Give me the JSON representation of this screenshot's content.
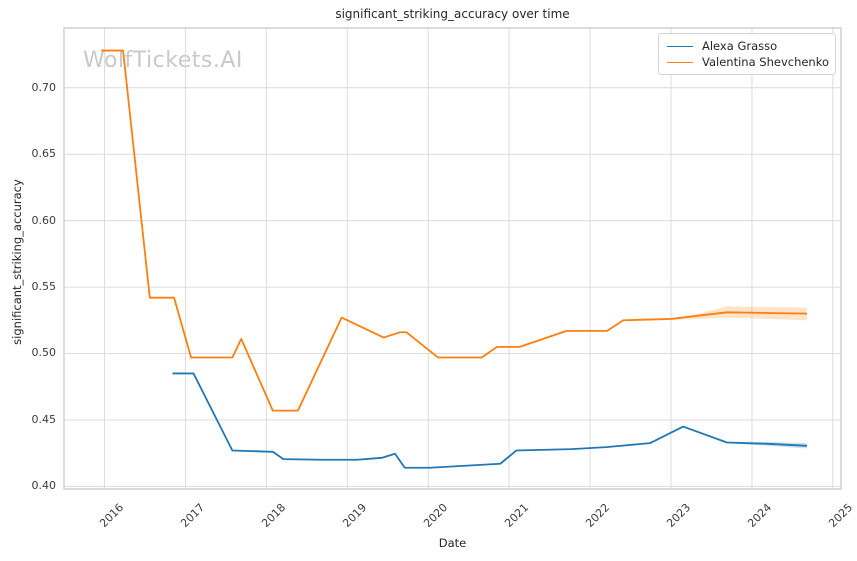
{
  "watermark": "WolfTickets.AI",
  "colors": {
    "background": "#ffffff",
    "grid": "#dcdcdc",
    "spine": "#d0d0d0",
    "text": "#262626",
    "tick_text": "#3b3b3b",
    "watermark": "#c9c9c9"
  },
  "legend": {
    "position": "upper right",
    "entries": [
      {
        "label": "Alexa Grasso",
        "color": "#1f77b4"
      },
      {
        "label": "Valentina Shevchenko",
        "color": "#ff7f0e"
      }
    ]
  },
  "chart_data": {
    "type": "line",
    "title": "significant_striking_accuracy over time",
    "xlabel": "Date",
    "ylabel": "significant_striking_accuracy",
    "xlim": [
      2015.5,
      2025.1
    ],
    "ylim": [
      0.398,
      0.745
    ],
    "x_ticks": [
      2016,
      2017,
      2018,
      2019,
      2020,
      2021,
      2022,
      2023,
      2024,
      2025
    ],
    "y_ticks": [
      0.4,
      0.45,
      0.5,
      0.55,
      0.6,
      0.65,
      0.7
    ],
    "grid": true,
    "series": [
      {
        "name": "Alexa Grasso",
        "color": "#1f77b4",
        "points": [
          [
            2016.84,
            0.485
          ],
          [
            2017.1,
            0.485
          ],
          [
            2017.58,
            0.427
          ],
          [
            2018.08,
            0.426
          ],
          [
            2018.21,
            0.4205
          ],
          [
            2018.68,
            0.42
          ],
          [
            2019.12,
            0.42
          ],
          [
            2019.43,
            0.4215
          ],
          [
            2019.59,
            0.4245
          ],
          [
            2019.71,
            0.414
          ],
          [
            2020.02,
            0.414
          ],
          [
            2020.89,
            0.417
          ],
          [
            2021.09,
            0.427
          ],
          [
            2021.77,
            0.428
          ],
          [
            2022.2,
            0.4295
          ],
          [
            2022.47,
            0.431
          ],
          [
            2022.74,
            0.4325
          ],
          [
            2023.15,
            0.445
          ],
          [
            2023.69,
            0.433
          ],
          [
            2024.2,
            0.432
          ],
          [
            2024.68,
            0.4305
          ]
        ],
        "band": {
          "x": [
            2023.69,
            2024.2,
            2024.68
          ],
          "upper": [
            0.4335,
            0.4335,
            0.4325
          ],
          "lower": [
            0.4325,
            0.4305,
            0.4285
          ]
        }
      },
      {
        "name": "Valentina Shevchenko",
        "color": "#ff7f0e",
        "points": [
          [
            2015.96,
            0.728
          ],
          [
            2016.23,
            0.728
          ],
          [
            2016.56,
            0.542
          ],
          [
            2016.86,
            0.542
          ],
          [
            2017.07,
            0.497
          ],
          [
            2017.58,
            0.497
          ],
          [
            2017.69,
            0.511
          ],
          [
            2018.08,
            0.457
          ],
          [
            2018.39,
            0.457
          ],
          [
            2018.93,
            0.527
          ],
          [
            2019.45,
            0.512
          ],
          [
            2019.65,
            0.516
          ],
          [
            2019.73,
            0.516
          ],
          [
            2020.12,
            0.497
          ],
          [
            2020.66,
            0.497
          ],
          [
            2020.85,
            0.505
          ],
          [
            2021.13,
            0.505
          ],
          [
            2021.71,
            0.517
          ],
          [
            2022.21,
            0.517
          ],
          [
            2022.41,
            0.525
          ],
          [
            2023.0,
            0.526
          ],
          [
            2023.69,
            0.531
          ],
          [
            2024.2,
            0.5305
          ],
          [
            2024.68,
            0.53
          ]
        ],
        "band": {
          "x": [
            2023.0,
            2023.35,
            2023.69,
            2024.2,
            2024.68
          ],
          "upper": [
            0.5265,
            0.53,
            0.5355,
            0.535,
            0.5345
          ],
          "lower": [
            0.5255,
            0.526,
            0.527,
            0.526,
            0.525
          ]
        }
      }
    ]
  }
}
